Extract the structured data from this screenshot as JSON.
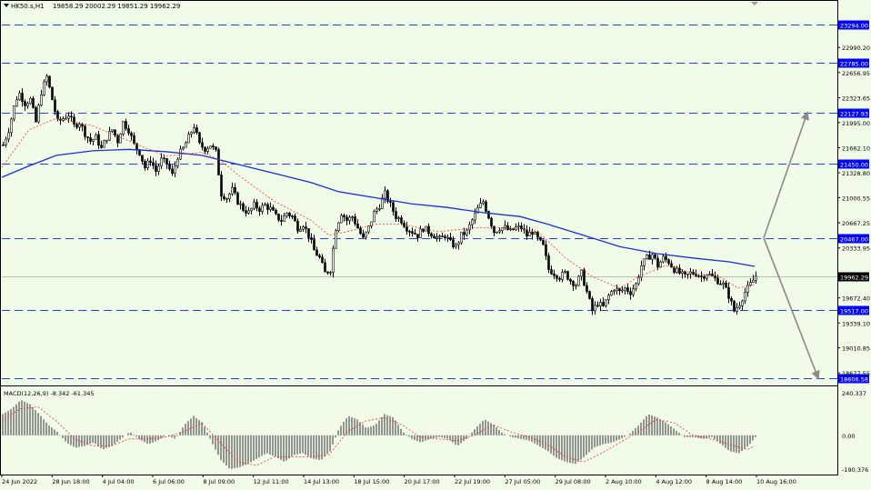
{
  "header": {
    "symbol_label": "HK50.s,H1",
    "ohlc_label": "19858.29 20002.29 19851.29 19962.29"
  },
  "colors": {
    "background": "#f0fbe8",
    "axis": "#000000",
    "level_line": "#2040ff",
    "level_tag_bg": "#0000ff",
    "ma_blue": "#1a2fe0",
    "ma_red": "#ff3030",
    "candle": "#000000",
    "arrow": "#8a8a8a",
    "price_tag_bg": "#000000",
    "macd_hist": "#7a7a7a"
  },
  "chart_data": [
    {
      "type": "candlestick",
      "symbol": "HK50.s",
      "timeframe": "H1",
      "last_ohlc": {
        "open": 19858.29,
        "high": 20002.29,
        "low": 19851.29,
        "close": 19962.29
      },
      "current_price": "19962.29",
      "ylim": [
        18500,
        23500
      ],
      "y_ticks": [
        "22990.20",
        "22656.95",
        "22323.65",
        "21995.00",
        "21662.10",
        "21328.80",
        "21000.55",
        "20667.25",
        "20333.95",
        "19672.40",
        "19339.10",
        "19010.85",
        "18677.55"
      ],
      "x_ticks": [
        "24 Jun 2022",
        "28 Jun 18:00",
        "4 Jul 04:00",
        "6 Jul 06:00",
        "8 Jul 09:00",
        "12 Jul 11:00",
        "14 Jul 13:00",
        "18 Jul 15:00",
        "20 Jul 17:00",
        "22 Jul 19:00",
        "27 Jul 05:00",
        "29 Jul 08:00",
        "2 Aug 10:00",
        "4 Aug 12:00",
        "8 Aug 14:00",
        "10 Aug 16:00"
      ],
      "levels": [
        "23294.00",
        "22785.00",
        "22127.93",
        "21450.00",
        "20467.00",
        "19517.00",
        "18606.58"
      ],
      "close_path": [
        [
          0,
          21700
        ],
        [
          6,
          21900
        ],
        [
          12,
          22200
        ],
        [
          17,
          22400
        ],
        [
          24,
          22250
        ],
        [
          30,
          22300
        ],
        [
          36,
          22000
        ],
        [
          42,
          22400
        ],
        [
          48,
          22600
        ],
        [
          54,
          22300
        ],
        [
          60,
          22000
        ],
        [
          66,
          22050
        ],
        [
          72,
          22100
        ],
        [
          78,
          21950
        ],
        [
          84,
          22000
        ],
        [
          90,
          21850
        ],
        [
          96,
          21750
        ],
        [
          102,
          21800
        ],
        [
          108,
          21650
        ],
        [
          114,
          21800
        ],
        [
          120,
          21900
        ],
        [
          126,
          21750
        ],
        [
          132,
          22000
        ],
        [
          138,
          21900
        ],
        [
          144,
          21700
        ],
        [
          150,
          21600
        ],
        [
          156,
          21400
        ],
        [
          162,
          21500
        ],
        [
          168,
          21350
        ],
        [
          174,
          21500
        ],
        [
          180,
          21450
        ],
        [
          186,
          21300
        ],
        [
          192,
          21550
        ],
        [
          198,
          21650
        ],
        [
          204,
          21800
        ],
        [
          210,
          21950
        ],
        [
          216,
          21700
        ],
        [
          222,
          21650
        ],
        [
          228,
          21700
        ],
        [
          234,
          21600
        ],
        [
          240,
          21050
        ],
        [
          246,
          21000
        ],
        [
          252,
          21100
        ],
        [
          258,
          20950
        ],
        [
          264,
          20850
        ],
        [
          270,
          20800
        ],
        [
          276,
          20900
        ],
        [
          282,
          20850
        ],
        [
          288,
          20900
        ],
        [
          294,
          20850
        ],
        [
          300,
          20750
        ],
        [
          306,
          20700
        ],
        [
          312,
          20800
        ],
        [
          318,
          20750
        ],
        [
          324,
          20600
        ],
        [
          330,
          20650
        ],
        [
          336,
          20500
        ],
        [
          342,
          20300
        ],
        [
          348,
          20200
        ],
        [
          354,
          20000
        ],
        [
          360,
          20050
        ],
        [
          366,
          20600
        ],
        [
          372,
          20800
        ],
        [
          378,
          20700
        ],
        [
          384,
          20750
        ],
        [
          390,
          20600
        ],
        [
          396,
          20450
        ],
        [
          402,
          20600
        ],
        [
          408,
          20800
        ],
        [
          414,
          20900
        ],
        [
          420,
          21050
        ],
        [
          426,
          20900
        ],
        [
          432,
          20750
        ],
        [
          438,
          20700
        ],
        [
          444,
          20600
        ],
        [
          450,
          20550
        ],
        [
          456,
          20500
        ],
        [
          462,
          20600
        ],
        [
          468,
          20550
        ],
        [
          474,
          20500
        ],
        [
          480,
          20450
        ],
        [
          486,
          20500
        ],
        [
          492,
          20400
        ],
        [
          498,
          20350
        ],
        [
          504,
          20500
        ],
        [
          510,
          20550
        ],
        [
          516,
          20700
        ],
        [
          522,
          20850
        ],
        [
          528,
          20950
        ],
        [
          534,
          20750
        ],
        [
          540,
          20550
        ],
        [
          546,
          20600
        ],
        [
          552,
          20600
        ],
        [
          558,
          20550
        ],
        [
          564,
          20600
        ],
        [
          570,
          20600
        ],
        [
          576,
          20500
        ],
        [
          582,
          20550
        ],
        [
          588,
          20450
        ],
        [
          594,
          20350
        ],
        [
          600,
          20050
        ],
        [
          606,
          20000
        ],
        [
          612,
          19950
        ],
        [
          618,
          20000
        ],
        [
          624,
          19900
        ],
        [
          630,
          19850
        ],
        [
          636,
          20000
        ],
        [
          642,
          19750
        ],
        [
          648,
          19500
        ],
        [
          654,
          19600
        ],
        [
          660,
          19550
        ],
        [
          666,
          19700
        ],
        [
          672,
          19800
        ],
        [
          678,
          19750
        ],
        [
          684,
          19800
        ],
        [
          690,
          19750
        ],
        [
          696,
          19850
        ],
        [
          702,
          20100
        ],
        [
          708,
          20200
        ],
        [
          714,
          20250
        ],
        [
          720,
          20100
        ],
        [
          726,
          20200
        ],
        [
          732,
          20150
        ],
        [
          738,
          20050
        ],
        [
          744,
          20000
        ],
        [
          750,
          19950
        ],
        [
          756,
          20000
        ],
        [
          762,
          20000
        ],
        [
          768,
          19950
        ],
        [
          774,
          20000
        ],
        [
          780,
          19950
        ],
        [
          786,
          19900
        ],
        [
          792,
          19850
        ],
        [
          798,
          19700
        ],
        [
          804,
          19500
        ],
        [
          810,
          19600
        ],
        [
          816,
          19750
        ],
        [
          822,
          19850
        ],
        [
          828,
          19962
        ]
      ],
      "ma_blue": [
        [
          0,
          21270
        ],
        [
          30,
          21420
        ],
        [
          60,
          21560
        ],
        [
          100,
          21620
        ],
        [
          140,
          21640
        ],
        [
          180,
          21610
        ],
        [
          220,
          21560
        ],
        [
          260,
          21440
        ],
        [
          300,
          21320
        ],
        [
          340,
          21200
        ],
        [
          370,
          21080
        ],
        [
          410,
          21000
        ],
        [
          450,
          20920
        ],
        [
          490,
          20870
        ],
        [
          530,
          20800
        ],
        [
          570,
          20750
        ],
        [
          600,
          20650
        ],
        [
          640,
          20500
        ],
        [
          680,
          20350
        ],
        [
          720,
          20260
        ],
        [
          760,
          20200
        ],
        [
          800,
          20150
        ],
        [
          828,
          20090
        ]
      ],
      "ma_red": [
        [
          0,
          21400
        ],
        [
          30,
          21900
        ],
        [
          60,
          22050
        ],
        [
          100,
          21950
        ],
        [
          140,
          21750
        ],
        [
          180,
          21550
        ],
        [
          220,
          21600
        ],
        [
          240,
          21500
        ],
        [
          260,
          21300
        ],
        [
          300,
          20950
        ],
        [
          340,
          20700
        ],
        [
          360,
          20500
        ],
        [
          380,
          20550
        ],
        [
          410,
          20650
        ],
        [
          440,
          20650
        ],
        [
          480,
          20550
        ],
        [
          520,
          20600
        ],
        [
          560,
          20600
        ],
        [
          590,
          20550
        ],
        [
          620,
          20200
        ],
        [
          650,
          19950
        ],
        [
          680,
          19800
        ],
        [
          700,
          19950
        ],
        [
          730,
          20100
        ],
        [
          760,
          20000
        ],
        [
          790,
          19950
        ],
        [
          810,
          19800
        ],
        [
          828,
          19850
        ]
      ],
      "projection_arrows": [
        {
          "from": [
            838,
            20467
          ],
          "to": [
            886,
            22127.93
          ]
        },
        {
          "from": [
            838,
            20467
          ],
          "to": [
            898,
            18606.58
          ]
        }
      ]
    },
    {
      "type": "bar",
      "title": "MACD(12,26,9) -8.342 -61.345",
      "indicator": "MACD",
      "params": [
        12,
        26,
        9
      ],
      "main_value": -8.342,
      "signal_value": -61.345,
      "ylim": [
        -190.376,
        240.337
      ],
      "y_ticks": [
        "240.337",
        "0.00",
        "-190.376"
      ],
      "histogram": [
        [
          0,
          120
        ],
        [
          10,
          150
        ],
        [
          20,
          200
        ],
        [
          30,
          175
        ],
        [
          40,
          120
        ],
        [
          50,
          60
        ],
        [
          60,
          20
        ],
        [
          70,
          -40
        ],
        [
          80,
          -70
        ],
        [
          90,
          -60
        ],
        [
          100,
          -40
        ],
        [
          110,
          -80
        ],
        [
          120,
          -60
        ],
        [
          130,
          -20
        ],
        [
          140,
          20
        ],
        [
          150,
          -20
        ],
        [
          160,
          -50
        ],
        [
          170,
          -30
        ],
        [
          180,
          0
        ],
        [
          190,
          -20
        ],
        [
          200,
          60
        ],
        [
          210,
          110
        ],
        [
          220,
          70
        ],
        [
          230,
          -40
        ],
        [
          240,
          -140
        ],
        [
          250,
          -190
        ],
        [
          260,
          -180
        ],
        [
          270,
          -160
        ],
        [
          280,
          -130
        ],
        [
          290,
          -100
        ],
        [
          300,
          -120
        ],
        [
          310,
          -150
        ],
        [
          320,
          -110
        ],
        [
          330,
          -100
        ],
        [
          340,
          -130
        ],
        [
          350,
          -140
        ],
        [
          360,
          -90
        ],
        [
          370,
          40
        ],
        [
          380,
          110
        ],
        [
          390,
          90
        ],
        [
          400,
          40
        ],
        [
          410,
          60
        ],
        [
          420,
          120
        ],
        [
          430,
          100
        ],
        [
          440,
          20
        ],
        [
          450,
          -20
        ],
        [
          460,
          -40
        ],
        [
          470,
          -20
        ],
        [
          480,
          -10
        ],
        [
          490,
          -20
        ],
        [
          500,
          -60
        ],
        [
          510,
          -20
        ],
        [
          520,
          40
        ],
        [
          530,
          90
        ],
        [
          540,
          60
        ],
        [
          550,
          10
        ],
        [
          560,
          -10
        ],
        [
          570,
          -20
        ],
        [
          580,
          -30
        ],
        [
          590,
          -60
        ],
        [
          600,
          -90
        ],
        [
          610,
          -130
        ],
        [
          620,
          -150
        ],
        [
          630,
          -160
        ],
        [
          640,
          -120
        ],
        [
          650,
          -70
        ],
        [
          660,
          -50
        ],
        [
          670,
          -40
        ],
        [
          680,
          -20
        ],
        [
          690,
          10
        ],
        [
          700,
          60
        ],
        [
          710,
          120
        ],
        [
          720,
          100
        ],
        [
          730,
          70
        ],
        [
          740,
          30
        ],
        [
          750,
          -10
        ],
        [
          760,
          -10
        ],
        [
          770,
          -20
        ],
        [
          780,
          -10
        ],
        [
          790,
          -50
        ],
        [
          800,
          -90
        ],
        [
          810,
          -100
        ],
        [
          820,
          -60
        ],
        [
          828,
          -10
        ]
      ],
      "signal": [
        [
          0,
          80
        ],
        [
          20,
          150
        ],
        [
          40,
          160
        ],
        [
          60,
          80
        ],
        [
          80,
          -20
        ],
        [
          100,
          -60
        ],
        [
          120,
          -60
        ],
        [
          140,
          -20
        ],
        [
          160,
          -20
        ],
        [
          180,
          -10
        ],
        [
          200,
          20
        ],
        [
          220,
          70
        ],
        [
          240,
          -40
        ],
        [
          260,
          -150
        ],
        [
          280,
          -170
        ],
        [
          300,
          -120
        ],
        [
          320,
          -120
        ],
        [
          340,
          -120
        ],
        [
          360,
          -110
        ],
        [
          380,
          20
        ],
        [
          400,
          80
        ],
        [
          420,
          100
        ],
        [
          440,
          60
        ],
        [
          460,
          -10
        ],
        [
          480,
          -20
        ],
        [
          500,
          -30
        ],
        [
          520,
          0
        ],
        [
          540,
          60
        ],
        [
          560,
          20
        ],
        [
          580,
          -10
        ],
        [
          600,
          -50
        ],
        [
          620,
          -120
        ],
        [
          640,
          -150
        ],
        [
          660,
          -100
        ],
        [
          680,
          -40
        ],
        [
          700,
          20
        ],
        [
          720,
          90
        ],
        [
          740,
          70
        ],
        [
          760,
          0
        ],
        [
          780,
          -20
        ],
        [
          800,
          -50
        ],
        [
          820,
          -80
        ],
        [
          828,
          -60
        ]
      ]
    }
  ]
}
